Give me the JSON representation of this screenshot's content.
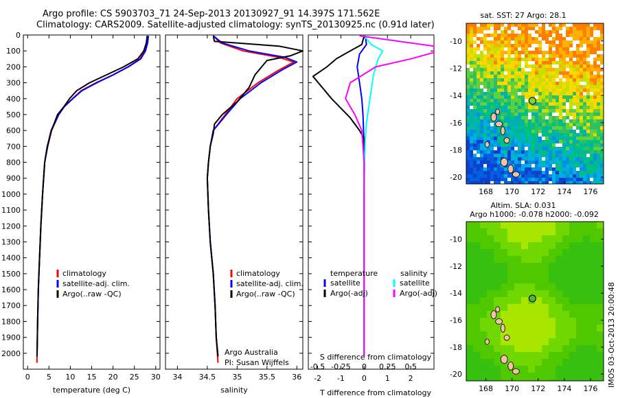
{
  "header": {
    "line1": "Argo profile: CS 5903703_71 24-Sep-2013 20130927_91 14.397S 171.562E",
    "line2": "Climatology: CARS2009. Satellite-adjusted climatology: synTS_20130925.nc (0.91d later)"
  },
  "colors": {
    "climatology": "#ff0000",
    "satellite": "#0000ff",
    "argo": "#000000",
    "sal_sat": "#00ffff",
    "sal_argo": "#ff00ff"
  },
  "chart_data": [
    {
      "id": "temperature",
      "type": "line",
      "xlabel": "temperature (deg C)",
      "xlim": [
        -1,
        31
      ],
      "ylim": [
        2100,
        0
      ],
      "xticks": [
        "0",
        "5",
        "10",
        "15",
        "20",
        "25",
        "30"
      ],
      "xtick_values": [
        0,
        5,
        10,
        15,
        20,
        25,
        30
      ],
      "yticks": [
        "0",
        "100",
        "200",
        "300",
        "400",
        "500",
        "600",
        "700",
        "800",
        "900",
        "1000",
        "1100",
        "1200",
        "1300",
        "1400",
        "1500",
        "1600",
        "1700",
        "1800",
        "1900",
        "2000"
      ],
      "legend": [
        "climatology",
        "satellite-adj. clim.",
        "Argo(..raw -QC)"
      ],
      "series": [
        {
          "name": "climatology",
          "color": "#ff0000",
          "x": [
            28.2,
            28.0,
            27.5,
            26.3,
            23.5,
            20.0,
            16.0,
            12.5,
            10.5,
            8.5,
            7.2,
            5.5,
            4.6,
            4.0,
            3.5,
            3.1,
            2.8,
            2.5,
            2.35,
            2.25,
            2.2,
            2.18
          ],
          "y": [
            5,
            50,
            100,
            150,
            200,
            250,
            300,
            350,
            400,
            450,
            500,
            600,
            700,
            800,
            1000,
            1200,
            1400,
            1600,
            1800,
            1950,
            2020,
            2060
          ]
        },
        {
          "name": "satellite-adj. clim.",
          "color": "#0000ff",
          "x": [
            28.3,
            28.1,
            27.6,
            26.5,
            23.6,
            20.1,
            16.2,
            12.7,
            10.6,
            8.6,
            7.3,
            5.6,
            4.6,
            4.0,
            3.5,
            3.1,
            2.8,
            2.5,
            2.35,
            2.25,
            2.2
          ],
          "y": [
            5,
            50,
            100,
            150,
            200,
            250,
            300,
            350,
            400,
            450,
            500,
            600,
            700,
            800,
            1000,
            1200,
            1400,
            1600,
            1800,
            1950,
            2020
          ]
        },
        {
          "name": "Argo(..raw -QC)",
          "color": "#000000",
          "x": [
            28.0,
            27.8,
            27.2,
            25.8,
            22.5,
            18.5,
            14.5,
            11.5,
            9.8,
            8.5,
            7.0,
            5.6,
            4.7,
            4.0,
            3.5,
            3.1,
            2.8,
            2.5,
            2.35,
            2.25,
            2.2
          ],
          "y": [
            5,
            50,
            100,
            150,
            200,
            250,
            300,
            350,
            400,
            450,
            500,
            600,
            700,
            800,
            1000,
            1200,
            1400,
            1600,
            1800,
            1950,
            2020
          ]
        }
      ]
    },
    {
      "id": "salinity",
      "type": "line",
      "xlabel": "salinity",
      "xlim": [
        33.8,
        36.1
      ],
      "ylim": [
        2100,
        0
      ],
      "xticks": [
        "34",
        "34.5",
        "35",
        "35.5",
        "36"
      ],
      "xtick_values": [
        34,
        34.5,
        35,
        35.5,
        36
      ],
      "legend": [
        "climatology",
        "satellite-adj. clim.",
        "Argo(..raw -QC)"
      ],
      "annotation": [
        "Argo Australia",
        "PI: Susan Wijffels"
      ],
      "series": [
        {
          "name": "climatology",
          "color": "#ff0000",
          "x": [
            34.6,
            34.72,
            35.1,
            35.7,
            35.95,
            35.7,
            35.35,
            35.0,
            34.8,
            34.6,
            34.55,
            34.52,
            34.5,
            34.52,
            34.55,
            34.6,
            34.63,
            34.65,
            34.68
          ],
          "y": [
            5,
            50,
            100,
            140,
            170,
            220,
            300,
            400,
            500,
            600,
            700,
            800,
            900,
            1100,
            1300,
            1500,
            1700,
            1900,
            2060
          ]
        },
        {
          "name": "satellite-adj. clim.",
          "color": "#0000ff",
          "x": [
            34.6,
            34.75,
            35.2,
            35.8,
            36.0,
            35.75,
            35.4,
            35.05,
            34.82,
            34.6,
            34.55,
            34.52,
            34.5,
            34.52,
            34.55,
            34.6,
            34.63,
            34.65,
            34.68
          ],
          "y": [
            5,
            50,
            100,
            140,
            170,
            220,
            300,
            400,
            500,
            600,
            700,
            800,
            900,
            1100,
            1300,
            1500,
            1700,
            1900,
            2020
          ]
        },
        {
          "name": "Argo(..raw -QC)",
          "color": "#000000",
          "x": [
            34.6,
            34.62,
            35.7,
            36.1,
            35.9,
            35.5,
            35.3,
            35.2,
            35.0,
            34.75,
            34.62,
            34.6,
            34.55,
            34.52,
            34.5,
            34.52,
            34.55,
            34.6,
            34.63,
            34.65,
            34.68
          ],
          "y": [
            5,
            40,
            70,
            100,
            130,
            160,
            250,
            330,
            420,
            500,
            560,
            620,
            700,
            800,
            900,
            1100,
            1300,
            1500,
            1700,
            1900,
            2020
          ]
        }
      ]
    },
    {
      "id": "differences",
      "type": "line",
      "xlabel": "T difference from climatology",
      "top_label": "S difference from climatology",
      "xlim": [
        -2.4,
        3.0
      ],
      "ylim": [
        2100,
        0
      ],
      "xticks": [
        "-2",
        "-1",
        "0",
        "1",
        "2"
      ],
      "xtick_values": [
        -2,
        -1,
        0,
        1,
        2
      ],
      "sticks": [
        "-0.5",
        "-0.25",
        "0",
        "0.25",
        "0.5"
      ],
      "stick_values": [
        -2,
        -1,
        0,
        1,
        2
      ],
      "legend_temp_title": "temperature",
      "legend_sal_title": "salinity",
      "legend_temp": [
        "satellite",
        "Argo(-adj)"
      ],
      "legend_sal": [
        "satellite",
        "Argo(-adj)"
      ],
      "series": [
        {
          "name": "T satellite",
          "color": "#0000ff",
          "x": [
            0.05,
            0.1,
            -0.2,
            -0.3,
            -0.2,
            -0.1,
            -0.05,
            0,
            0,
            0,
            0
          ],
          "y": [
            5,
            60,
            120,
            200,
            300,
            400,
            500,
            700,
            1000,
            1500,
            2020
          ]
        },
        {
          "name": "T Argo(-adj)",
          "color": "#000000",
          "x": [
            0.0,
            -0.1,
            -0.6,
            -1.2,
            -1.6,
            -2.2,
            -1.8,
            -1.4,
            -1.0,
            -0.6,
            -0.2,
            0.0,
            0.02,
            0,
            0
          ],
          "y": [
            5,
            60,
            100,
            150,
            200,
            260,
            330,
            400,
            460,
            520,
            600,
            650,
            700,
            1000,
            2020
          ]
        },
        {
          "name": "S satellite",
          "color": "#00ffff",
          "x": [
            0.0,
            0.3,
            0.8,
            0.6,
            0.4,
            0.3,
            0.2,
            0.1,
            0.05,
            0.0,
            0.0
          ],
          "y": [
            5,
            60,
            100,
            150,
            250,
            350,
            450,
            550,
            650,
            900,
            2020
          ]
        },
        {
          "name": "S Argo(-adj)",
          "color": "#ff00ff",
          "x": [
            -0.2,
            3.0,
            3.0,
            2.0,
            0.5,
            -0.6,
            -0.8,
            -0.4,
            -0.1,
            0.0,
            0.0
          ],
          "y": [
            5,
            70,
            110,
            150,
            200,
            300,
            400,
            500,
            600,
            800,
            2020
          ]
        }
      ]
    },
    {
      "id": "sst_map",
      "type": "heatmap",
      "title": "sat. SST: 27 Argo: 28.1",
      "xticks": [
        "168",
        "170",
        "172",
        "174",
        "176"
      ],
      "xtick_values": [
        168,
        170,
        172,
        174,
        176
      ],
      "yticks": [
        "-10",
        "-12",
        "-14",
        "-16",
        "-18",
        "-20"
      ],
      "ytick_values": [
        -10,
        -12,
        -14,
        -16,
        -18,
        -20
      ],
      "xlim": [
        166.5,
        177
      ],
      "ylim": [
        -20.5,
        -8.7
      ],
      "argo_lon": 171.562,
      "argo_lat": -14.397
    },
    {
      "id": "sla_map",
      "type": "heatmap",
      "title_line1": "Altim. SLA: 0.031",
      "title_line2": "Argo h1000: -0.078 h2000: -0.092",
      "xticks": [
        "168",
        "170",
        "172",
        "174",
        "176"
      ],
      "xtick_values": [
        168,
        170,
        172,
        174,
        176
      ],
      "yticks": [
        "-10",
        "-12",
        "-14",
        "-16",
        "-18",
        "-20"
      ],
      "ytick_values": [
        -10,
        -12,
        -14,
        -16,
        -18,
        -20
      ],
      "xlim": [
        166.5,
        177
      ],
      "ylim": [
        -20.5,
        -8.7
      ],
      "argo_lon": 171.562,
      "argo_lat": -14.397
    }
  ],
  "watermark": "IMOS 03-Oct-2013 20:00:48"
}
